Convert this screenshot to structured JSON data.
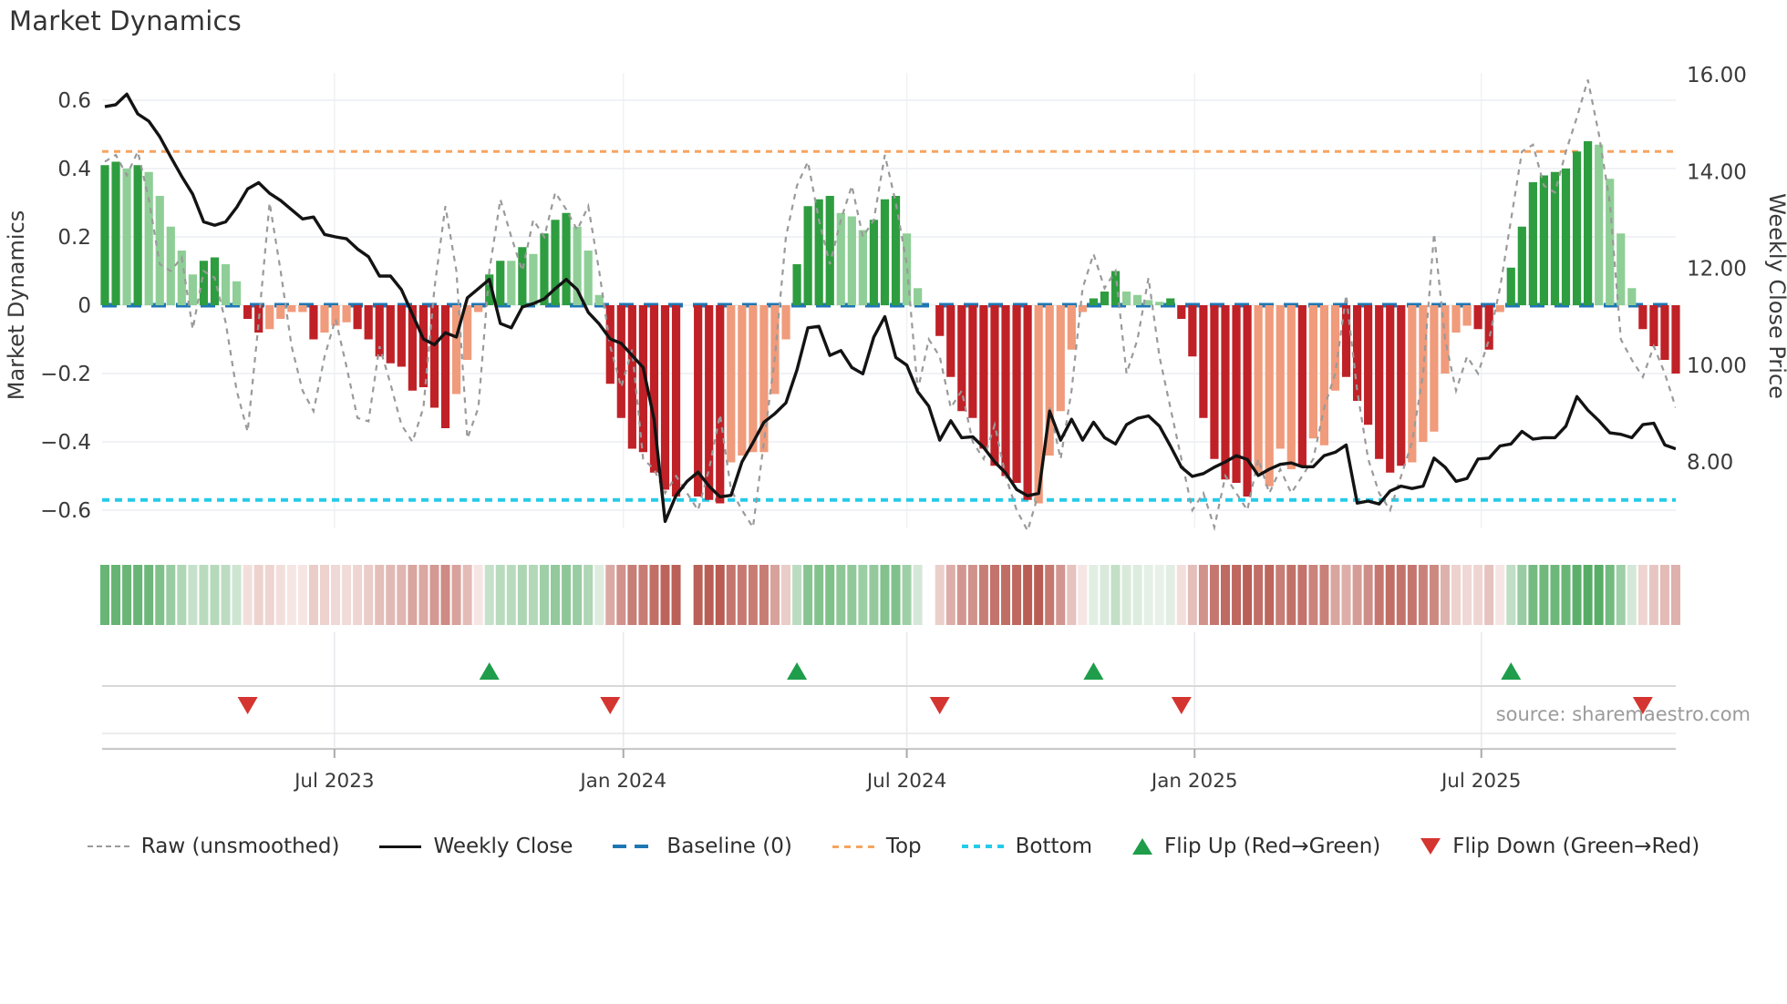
{
  "title": "Market Dynamics",
  "source": "source: sharemaestro.com",
  "colors": {
    "bar_dark_green": "#2e9d3f",
    "bar_light_green": "#8fcf97",
    "bar_dark_red": "#bf2127",
    "bar_light_red": "#f09b7b",
    "price_line": "#131313",
    "raw_line": "#9a9a9a",
    "baseline": "#1f77b4",
    "top_line": "#f6a45f",
    "bottom_line": "#25cbe9",
    "grid": "#eceef2",
    "flip_up": "#1f9d4b",
    "flip_down": "#d43530",
    "heat_green": "#44a455",
    "heat_red": "#b5544a",
    "tick_text": "#3a3a3a"
  },
  "legend": [
    {
      "label": "Raw (unsmoothed)",
      "glyph": "dash-gray"
    },
    {
      "label": "Weekly Close",
      "glyph": "solid-black"
    },
    {
      "label": "Baseline (0)",
      "glyph": "dash-blue"
    },
    {
      "label": "Top",
      "glyph": "dot-orange"
    },
    {
      "label": "Bottom",
      "glyph": "dot-cyan"
    },
    {
      "label": "Flip Up (Red→Green)",
      "glyph": "triangle-up-green"
    },
    {
      "label": "Flip Down (Green→Red)",
      "glyph": "triangle-down-red"
    }
  ],
  "chart_data": {
    "type": "bar",
    "subtype": "oscillator-bars + price line + raw dashed line + heatmap strip + flip markers",
    "left_axis": {
      "label": "Market Dynamics",
      "tick_values": [
        0.6,
        0.4,
        0.2,
        0,
        -0.2,
        -0.4,
        -0.6
      ],
      "tick_labels": [
        "0.6",
        "0.4",
        "0.2",
        "0",
        "−0.2",
        "−0.4",
        "−0.6"
      ],
      "range": [
        -0.67,
        0.69
      ]
    },
    "right_axis": {
      "label": "Weekly Close Price",
      "tick_values": [
        16,
        14,
        12,
        10,
        8
      ],
      "tick_labels": [
        "16.00",
        "14.00",
        "12.00",
        "10.00",
        "8.00"
      ],
      "range": [
        6.62,
        16.13
      ]
    },
    "x_axis": {
      "tick_labels": [
        "Jul 2023",
        "Jan 2024",
        "Jul 2024",
        "Jan 2025",
        "Jul 2025"
      ],
      "tick_weeks": [
        20.9,
        47.2,
        73.0,
        99.2,
        125.3
      ],
      "weeks_total": 144,
      "grid": true
    },
    "ref_lines": {
      "baseline": 0,
      "top": 0.45,
      "bottom": -0.57
    },
    "flip_up_weeks": [
      35,
      63,
      90,
      128
    ],
    "flip_down_weeks": [
      13,
      46,
      76,
      98,
      140
    ],
    "osc": [
      0.41,
      0.42,
      0.4,
      0.41,
      0.39,
      0.32,
      0.23,
      0.16,
      0.09,
      0.13,
      0.14,
      0.12,
      0.07,
      -0.04,
      -0.08,
      -0.07,
      -0.04,
      -0.02,
      -0.02,
      -0.1,
      -0.08,
      -0.06,
      -0.05,
      -0.07,
      -0.1,
      -0.15,
      -0.17,
      -0.18,
      -0.25,
      -0.24,
      -0.3,
      -0.36,
      -0.26,
      -0.16,
      -0.02,
      0.09,
      0.13,
      0.13,
      0.17,
      0.15,
      0.21,
      0.25,
      0.27,
      0.23,
      0.16,
      0.03,
      -0.23,
      -0.33,
      -0.42,
      -0.43,
      -0.49,
      -0.54,
      -0.56,
      null,
      -0.56,
      -0.57,
      -0.58,
      -0.46,
      -0.44,
      -0.43,
      -0.43,
      -0.26,
      -0.1,
      0.12,
      0.29,
      0.31,
      0.32,
      0.27,
      0.26,
      0.22,
      0.25,
      0.31,
      0.32,
      0.21,
      0.05,
      null,
      -0.09,
      -0.21,
      -0.31,
      -0.33,
      -0.42,
      -0.47,
      -0.5,
      -0.52,
      -0.57,
      -0.58,
      -0.44,
      -0.31,
      -0.13,
      -0.02,
      0.02,
      0.04,
      0.1,
      0.04,
      0.03,
      0.015,
      0.01,
      0.02,
      -0.04,
      -0.15,
      -0.33,
      -0.45,
      -0.51,
      -0.52,
      -0.56,
      -0.49,
      -0.53,
      -0.42,
      -0.48,
      -0.47,
      -0.39,
      -0.41,
      -0.25,
      -0.21,
      -0.28,
      -0.35,
      -0.45,
      -0.49,
      -0.47,
      -0.46,
      -0.4,
      -0.37,
      -0.2,
      -0.08,
      -0.06,
      -0.07,
      -0.13,
      -0.02,
      0.11,
      0.23,
      0.36,
      0.38,
      0.39,
      0.4,
      0.45,
      0.48,
      0.47,
      0.37,
      0.21,
      0.05,
      -0.07,
      -0.12,
      -0.16,
      -0.2
    ],
    "shade": [
      "dg",
      "dg",
      "lg",
      "dg",
      "lg",
      "lg",
      "lg",
      "lg",
      "lg",
      "dg",
      "dg",
      "lg",
      "lg",
      "dr",
      "dr",
      "lr",
      "lr",
      "lr",
      "lr",
      "dr",
      "lr",
      "lr",
      "lr",
      "dr",
      "dr",
      "dr",
      "dr",
      "dr",
      "dr",
      "dr",
      "dr",
      "dr",
      "lr",
      "lr",
      "lr",
      "dg",
      "dg",
      "lg",
      "dg",
      "lg",
      "dg",
      "dg",
      "dg",
      "lg",
      "lg",
      "lg",
      "dr",
      "dr",
      "dr",
      "dr",
      "dr",
      "dr",
      "dr",
      null,
      "dr",
      "dr",
      "dr",
      "lr",
      "lr",
      "lr",
      "lr",
      "lr",
      "lr",
      "dg",
      "dg",
      "dg",
      "dg",
      "lg",
      "lg",
      "lg",
      "dg",
      "dg",
      "dg",
      "lg",
      "lg",
      null,
      "dr",
      "dr",
      "dr",
      "dr",
      "dr",
      "dr",
      "dr",
      "dr",
      "dr",
      "lr",
      "lr",
      "lr",
      "lr",
      "lr",
      "dg",
      "dg",
      "dg",
      "lg",
      "lg",
      "lg",
      "lg",
      "dg",
      "dr",
      "dr",
      "dr",
      "dr",
      "dr",
      "dr",
      "dr",
      "lr",
      "lr",
      "lr",
      "lr",
      "dr",
      "lr",
      "lr",
      "lr",
      "dr",
      "dr",
      "dr",
      "dr",
      "dr",
      "dr",
      "lr",
      "lr",
      "lr",
      "lr",
      "lr",
      "lr",
      "dr",
      "dr",
      "lr",
      "dg",
      "dg",
      "dg",
      "dg",
      "dg",
      "dg",
      "dg",
      "dg",
      "lg",
      "lg",
      "lg",
      "lg",
      "dr",
      "dr",
      "dr",
      "dr"
    ],
    "price": [
      15.34,
      15.38,
      15.6,
      15.19,
      15.04,
      14.72,
      14.3,
      13.9,
      13.53,
      12.96,
      12.89,
      12.96,
      13.26,
      13.64,
      13.77,
      13.55,
      13.4,
      13.21,
      13.02,
      13.06,
      12.7,
      12.65,
      12.61,
      12.4,
      12.24,
      11.84,
      11.84,
      11.56,
      11.05,
      10.54,
      10.42,
      10.67,
      10.58,
      11.39,
      11.58,
      11.77,
      10.86,
      10.77,
      11.2,
      11.27,
      11.37,
      11.58,
      11.77,
      11.56,
      11.09,
      10.85,
      10.54,
      10.45,
      10.2,
      9.95,
      8.88,
      6.77,
      7.31,
      7.6,
      7.79,
      7.5,
      7.28,
      7.31,
      8.0,
      8.4,
      8.82,
      9.0,
      9.22,
      9.9,
      10.77,
      10.8,
      10.2,
      10.3,
      9.95,
      9.82,
      10.58,
      11.0,
      10.16,
      10.0,
      9.45,
      9.15,
      8.45,
      8.85,
      8.5,
      8.52,
      8.3,
      8.0,
      7.77,
      7.43,
      7.3,
      7.35,
      9.05,
      8.45,
      8.88,
      8.45,
      8.82,
      8.5,
      8.37,
      8.77,
      8.9,
      8.95,
      8.74,
      8.33,
      7.89,
      7.7,
      7.76,
      7.89,
      8.0,
      8.13,
      8.05,
      7.72,
      7.85,
      7.95,
      7.98,
      7.9,
      7.9,
      8.13,
      8.2,
      8.35,
      7.15,
      7.19,
      7.13,
      7.4,
      7.5,
      7.45,
      7.5,
      8.08,
      7.89,
      7.6,
      7.66,
      8.06,
      8.08,
      8.33,
      8.37,
      8.63,
      8.47,
      8.5,
      8.5,
      8.74,
      9.35,
      9.07,
      8.85,
      8.6,
      8.57,
      8.5,
      8.77,
      8.8,
      8.35,
      8.27
    ],
    "raw": [
      0.42,
      0.44,
      0.38,
      0.45,
      0.31,
      0.12,
      0.1,
      0.14,
      -0.07,
      0.1,
      0.08,
      -0.05,
      -0.25,
      -0.37,
      -0.05,
      0.3,
      0.1,
      -0.12,
      -0.25,
      -0.31,
      -0.15,
      -0.04,
      -0.18,
      -0.33,
      -0.34,
      -0.12,
      -0.23,
      -0.35,
      -0.4,
      -0.3,
      0.05,
      0.29,
      0.1,
      -0.39,
      -0.3,
      0.1,
      0.31,
      0.2,
      0.1,
      0.25,
      0.2,
      0.33,
      0.28,
      0.22,
      0.29,
      0.1,
      -0.12,
      -0.24,
      -0.13,
      -0.45,
      -0.48,
      -0.55,
      -0.5,
      -0.55,
      -0.6,
      -0.48,
      -0.32,
      -0.54,
      -0.6,
      -0.65,
      -0.4,
      -0.15,
      0.2,
      0.35,
      0.42,
      0.25,
      0.12,
      0.25,
      0.35,
      0.2,
      0.25,
      0.44,
      0.3,
      0.12,
      -0.25,
      -0.1,
      -0.15,
      -0.3,
      -0.25,
      -0.4,
      -0.45,
      -0.35,
      -0.5,
      -0.6,
      -0.66,
      -0.55,
      -0.3,
      -0.45,
      -0.25,
      0.05,
      0.15,
      0.05,
      0.1,
      -0.2,
      -0.1,
      0.08,
      -0.15,
      -0.3,
      -0.45,
      -0.6,
      -0.55,
      -0.65,
      -0.5,
      -0.55,
      -0.6,
      -0.45,
      -0.55,
      -0.48,
      -0.55,
      -0.5,
      -0.45,
      -0.3,
      -0.2,
      0.03,
      -0.25,
      -0.45,
      -0.55,
      -0.6,
      -0.5,
      -0.4,
      -0.2,
      0.21,
      -0.1,
      -0.25,
      -0.15,
      -0.2,
      -0.1,
      0.05,
      0.25,
      0.45,
      0.47,
      0.35,
      0.33,
      0.45,
      0.55,
      0.66,
      0.5,
      0.3,
      -0.1,
      -0.16,
      -0.21,
      -0.12,
      -0.2,
      -0.3
    ]
  }
}
